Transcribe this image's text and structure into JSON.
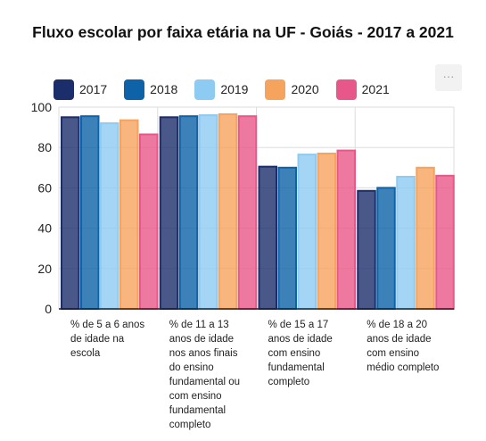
{
  "menu": {
    "label": "···"
  },
  "chart_data": {
    "type": "bar",
    "title": "Fluxo escolar por faixa etária na UF - Goiás - 2017 a 2021",
    "xlabel": "",
    "ylabel": "",
    "ylim": [
      0,
      100
    ],
    "yticks": [
      0,
      20,
      40,
      60,
      80,
      100
    ],
    "grid": true,
    "legend_position": "top",
    "categories": [
      "% de 5 a 6 anos de idade na escola",
      "% de 11 a 13 anos de idade nos anos finais do ensino fundamental ou com ensino fundamental completo",
      "% de 15 a 17 anos de idade com ensino fundamental completo",
      "% de 18 a 20 anos de idade com ensino médio completo"
    ],
    "category_lines": [
      [
        "% de 5 a 6 anos",
        "de idade na",
        "escola"
      ],
      [
        "% de 11 a 13",
        "anos de idade",
        "nos anos finais",
        "do ensino",
        "fundamental ou",
        "com ensino",
        "fundamental",
        "completo"
      ],
      [
        "% de 15 a 17",
        "anos de idade",
        "com ensino",
        "fundamental",
        "completo"
      ],
      [
        "% de 18 a 20",
        "anos de idade",
        "com ensino",
        "médio completo"
      ]
    ],
    "series": [
      {
        "name": "2017",
        "color": "#1c2d6b",
        "values": [
          95,
          95,
          70.5,
          58.5
        ]
      },
      {
        "name": "2018",
        "color": "#0d62a8",
        "values": [
          95.5,
          95.5,
          70,
          60
        ]
      },
      {
        "name": "2019",
        "color": "#8ecbf2",
        "values": [
          92,
          96,
          76.5,
          65.5
        ]
      },
      {
        "name": "2020",
        "color": "#f6a35d",
        "values": [
          93.5,
          96.5,
          77,
          70
        ]
      },
      {
        "name": "2021",
        "color": "#e8578a",
        "values": [
          86.5,
          95.5,
          78.5,
          66
        ]
      }
    ]
  }
}
